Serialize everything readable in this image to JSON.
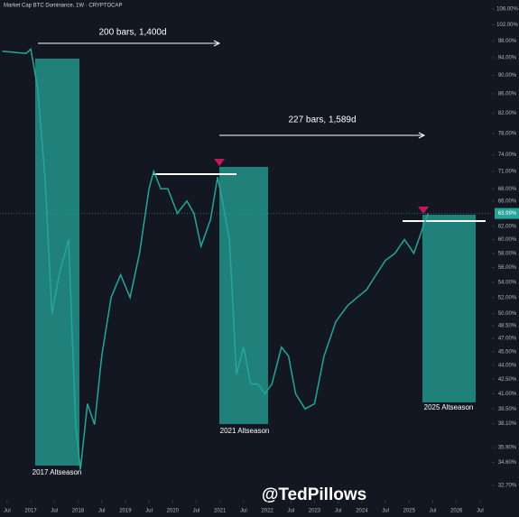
{
  "chart_data": {
    "type": "line",
    "title": "Market Cap BTC Dominance, 1W · CRYPTOCAP",
    "annotations": [
      "200 bars, 1,400d",
      "227 bars, 1,589d",
      "2017 Altseason",
      "2021 Altseason",
      "2025 Altseason",
      "@TedPillows"
    ],
    "log_scale": true,
    "xlim": [
      2016.35,
      2026.75
    ],
    "xticks": [
      {
        "value": 2016.5,
        "label": "Jul"
      },
      {
        "value": 2017,
        "label": "2017"
      },
      {
        "value": 2017.5,
        "label": "Jul"
      },
      {
        "value": 2018,
        "label": "2018"
      },
      {
        "value": 2018.5,
        "label": "Jul"
      },
      {
        "value": 2019,
        "label": "2019"
      },
      {
        "value": 2019.5,
        "label": "Jul"
      },
      {
        "value": 2020,
        "label": "2020"
      },
      {
        "value": 2020.5,
        "label": "Jul"
      },
      {
        "value": 2021,
        "label": "2021"
      },
      {
        "value": 2021.5,
        "label": "Jul"
      },
      {
        "value": 2022,
        "label": "2022"
      },
      {
        "value": 2022.5,
        "label": "Jul"
      },
      {
        "value": 2023,
        "label": "2023"
      },
      {
        "value": 2023.5,
        "label": "Jul"
      },
      {
        "value": 2024,
        "label": "2024"
      },
      {
        "value": 2024.5,
        "label": "Jul"
      },
      {
        "value": 2025,
        "label": "2025"
      },
      {
        "value": 2025.5,
        "label": "Jul"
      },
      {
        "value": 2026,
        "label": "2026"
      },
      {
        "value": 2026.5,
        "label": "Jul"
      }
    ],
    "ylim": [
      32.7,
      106
    ],
    "yticks": [
      {
        "value": 106,
        "label": "106.00%"
      },
      {
        "value": 102,
        "label": "102.00%"
      },
      {
        "value": 98,
        "label": "98.00%"
      },
      {
        "value": 94,
        "label": "94.00%"
      },
      {
        "value": 90,
        "label": "90.00%"
      },
      {
        "value": 86,
        "label": "86.00%"
      },
      {
        "value": 82,
        "label": "82.00%"
      },
      {
        "value": 78,
        "label": "78.00%"
      },
      {
        "value": 74,
        "label": "74.00%"
      },
      {
        "value": 71,
        "label": "71.00%"
      },
      {
        "value": 68,
        "label": "68.00%"
      },
      {
        "value": 66,
        "label": "66.00%"
      },
      {
        "value": 62,
        "label": "62.00%"
      },
      {
        "value": 60,
        "label": "60.00%"
      },
      {
        "value": 58,
        "label": "58.00%"
      },
      {
        "value": 56,
        "label": "56.00%"
      },
      {
        "value": 54,
        "label": "54.00%"
      },
      {
        "value": 52,
        "label": "52.00%"
      },
      {
        "value": 50,
        "label": "50.00%"
      },
      {
        "value": 48.5,
        "label": "48.50%"
      },
      {
        "value": 47,
        "label": "47.00%"
      },
      {
        "value": 45.5,
        "label": "45.50%"
      },
      {
        "value": 44,
        "label": "44.00%"
      },
      {
        "value": 42.5,
        "label": "42.50%"
      },
      {
        "value": 41,
        "label": "41.00%"
      },
      {
        "value": 39.5,
        "label": "39.50%"
      },
      {
        "value": 38.1,
        "label": "38.10%"
      },
      {
        "value": 35.9,
        "label": "35.90%"
      },
      {
        "value": 34.6,
        "label": "34.60%"
      },
      {
        "value": 32.7,
        "label": "32.70%"
      }
    ],
    "last_value": {
      "value": 63.99,
      "label": "63.99%"
    },
    "series": [
      {
        "name": "BTC.D",
        "color": "#26a69a",
        "x": [
          2016.4,
          2016.9,
          2017.0,
          2017.15,
          2017.3,
          2017.45,
          2017.6,
          2017.8,
          2017.95,
          2018.05,
          2018.2,
          2018.35,
          2018.5,
          2018.7,
          2018.9,
          2019.1,
          2019.3,
          2019.5,
          2019.6,
          2019.75,
          2019.9,
          2020.1,
          2020.3,
          2020.45,
          2020.6,
          2020.8,
          2020.95,
          2021.05,
          2021.2,
          2021.35,
          2021.5,
          2021.65,
          2021.8,
          2021.95,
          2022.1,
          2022.3,
          2022.45,
          2022.6,
          2022.8,
          2023.0,
          2023.2,
          2023.45,
          2023.7,
          2023.9,
          2024.1,
          2024.3,
          2024.5,
          2024.7,
          2024.9,
          2025.1,
          2025.3,
          2025.4
        ],
        "values": [
          95.5,
          95,
          96,
          87,
          70,
          50,
          55,
          60,
          38,
          34,
          40,
          38,
          45,
          52,
          55,
          52,
          58,
          68,
          71,
          68,
          68,
          64,
          66,
          64,
          59,
          63,
          70,
          66,
          60,
          43,
          46,
          42,
          42,
          41,
          42,
          46,
          45,
          41,
          39.5,
          40,
          45,
          49,
          51,
          52,
          53,
          55,
          57,
          58,
          60,
          58,
          62,
          64
        ]
      }
    ]
  }
}
